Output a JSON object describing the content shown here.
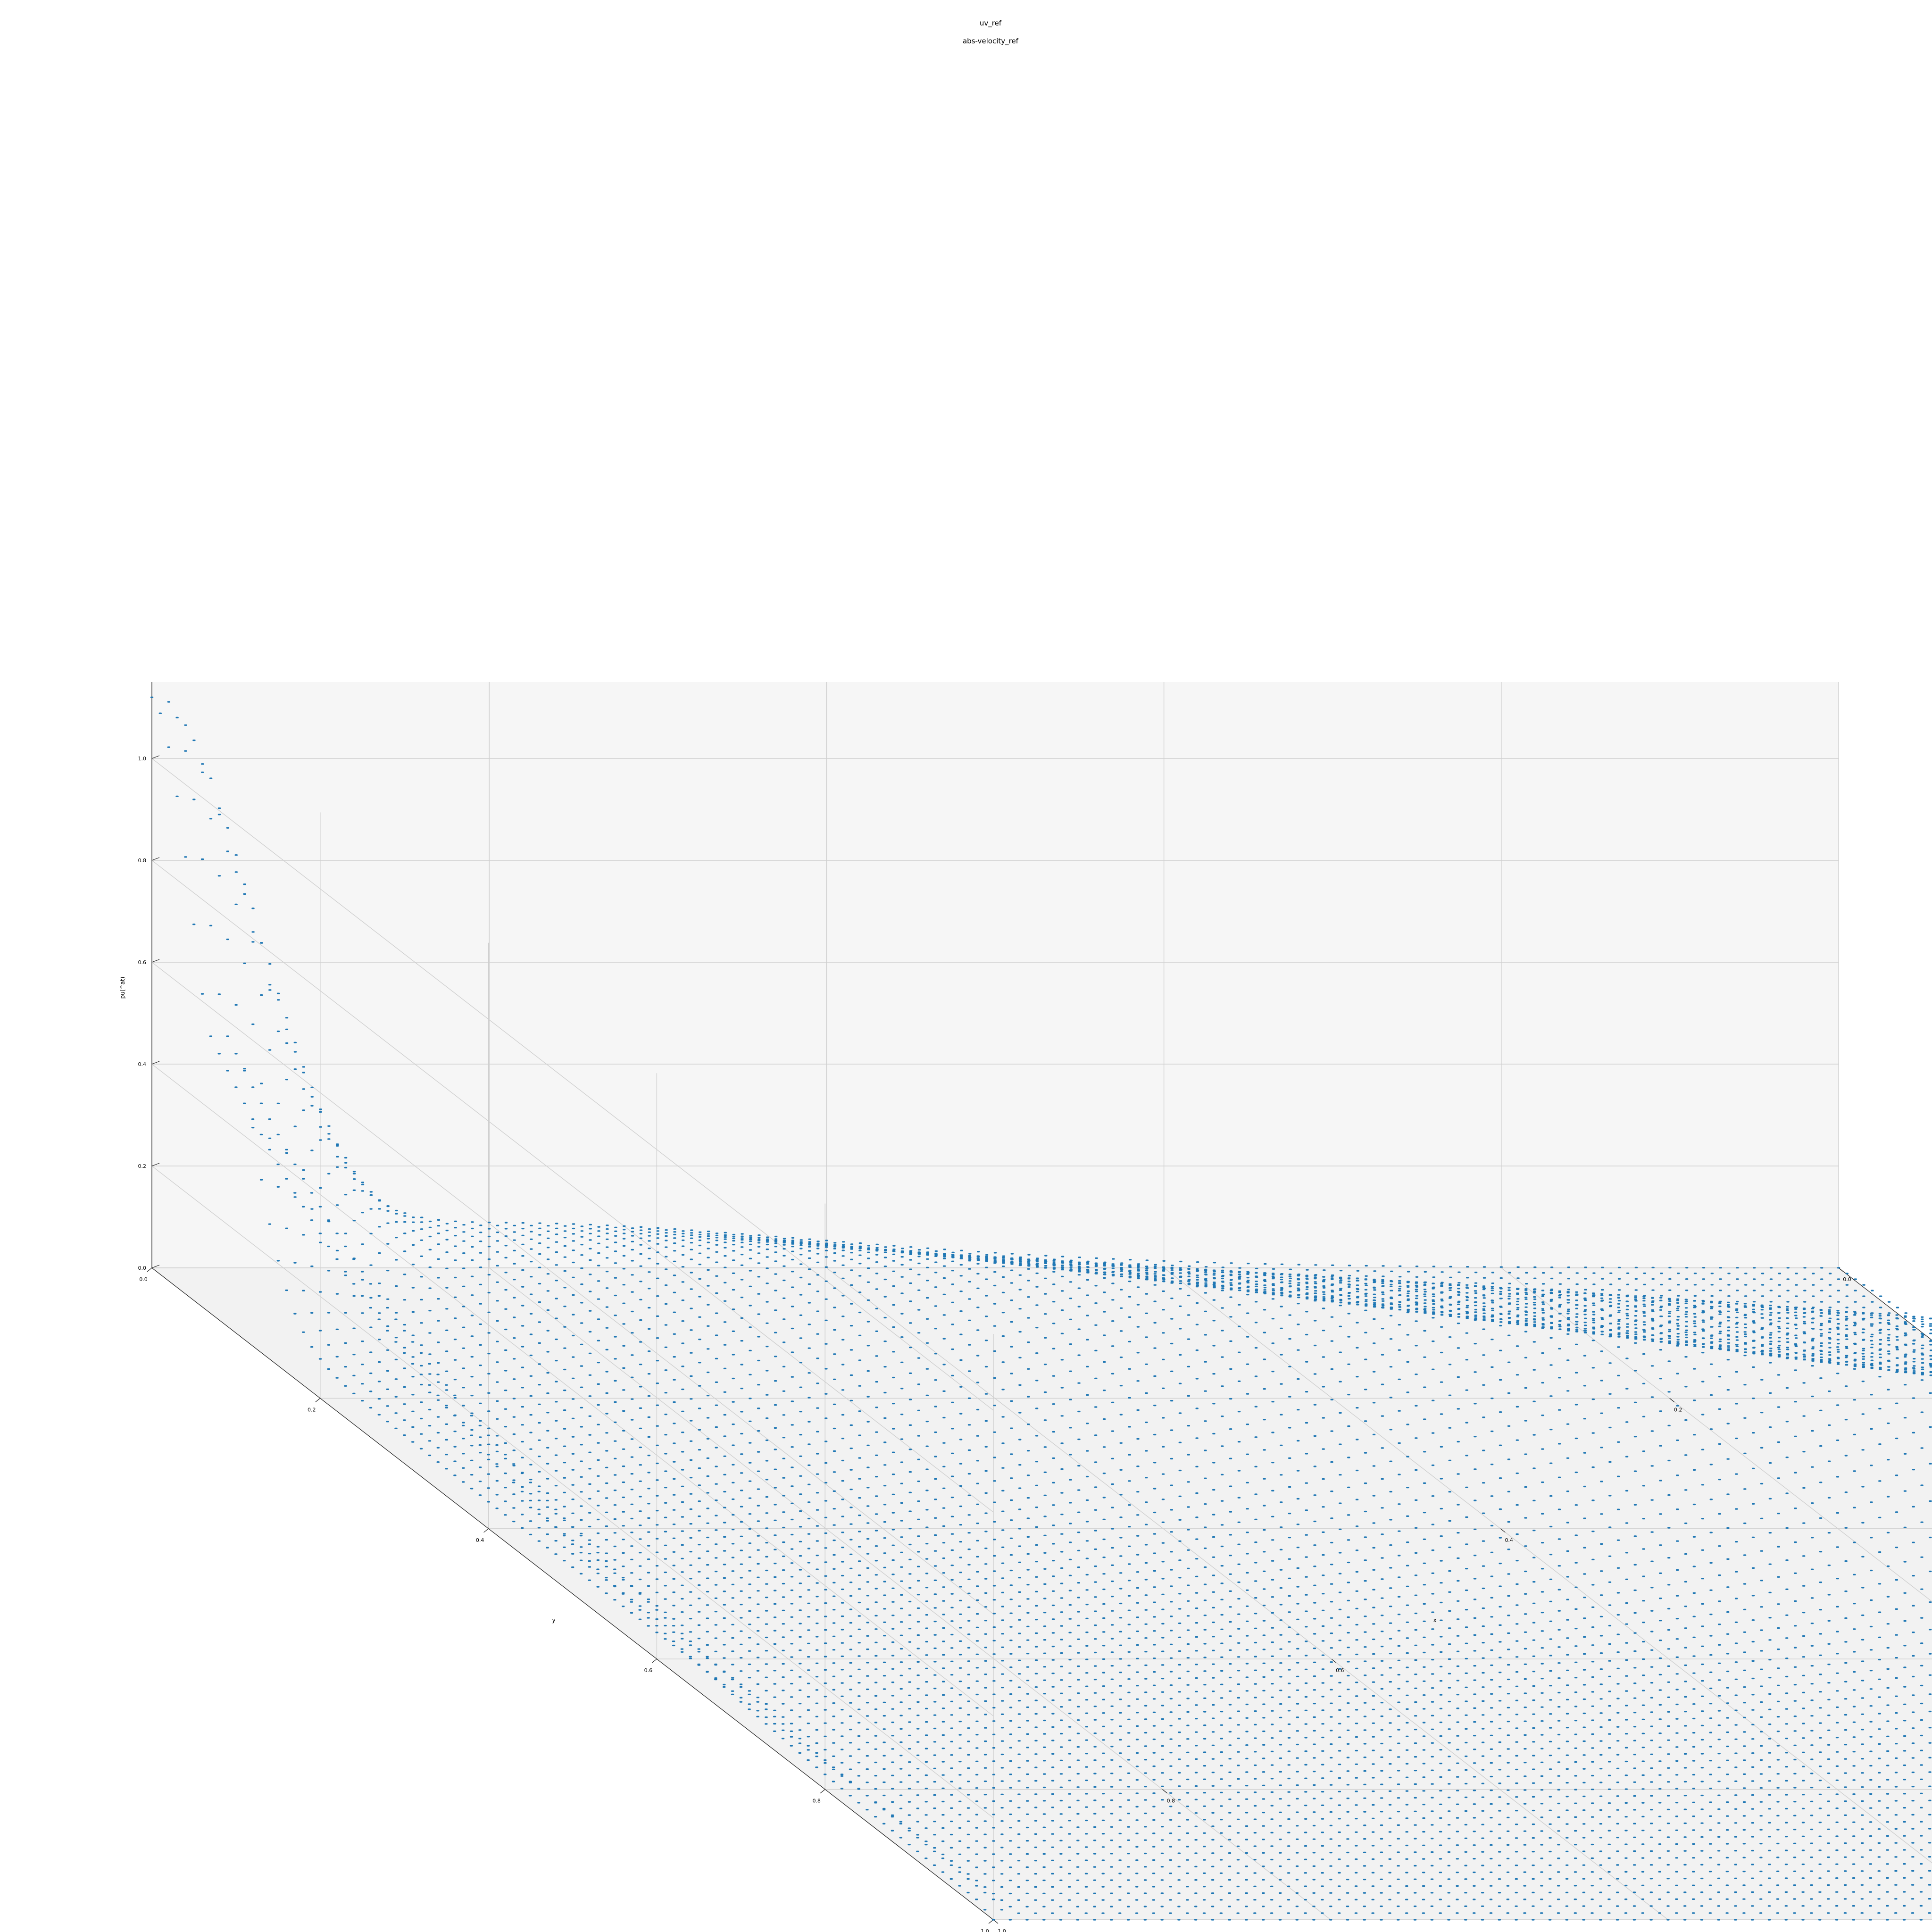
{
  "figure": {
    "suptitle": "uv_ref",
    "title": "abs-velocity_ref"
  },
  "chart_data": {
    "type": "scatter",
    "projection": "3d",
    "title": "abs-velocity_ref",
    "suptitle": "uv_ref",
    "xlabel": "x",
    "ylabel": "y",
    "zlabel": "pu(^at)",
    "xlim": [
      0.0,
      1.0
    ],
    "ylim": [
      0.0,
      1.0
    ],
    "zlim": [
      0.0,
      1.15
    ],
    "x_ticks": [
      "0.0",
      "0.2",
      "0.4",
      "0.6",
      "0.8",
      "1.0"
    ],
    "y_ticks": [
      "0.0",
      "0.2",
      "0.4",
      "0.6",
      "0.8",
      "1.0"
    ],
    "z_ticks": [
      "0.0",
      "0.2",
      "0.4",
      "0.6",
      "0.8",
      "1.0"
    ],
    "grid": true,
    "series": [
      {
        "name": "abs-velocity_ref",
        "color": "#1f77b4",
        "marker": "point",
        "grid_resolution": 101,
        "description_values": {
          "corner_x0_y0": 0.0,
          "peak_near_x0_y0": 1.12,
          "ridge_edge_x0_max": 0.72,
          "ridge_edge_y0_max": 0.07,
          "far_corner_x1_y1": 0.0
        }
      }
    ]
  },
  "colors": {
    "marker": "#1f77b4",
    "pane_left": "#f2f2f2",
    "pane_right": "#f6f6f6",
    "pane_floor": "#f2f2f2",
    "grid": "#cfcfcf"
  }
}
